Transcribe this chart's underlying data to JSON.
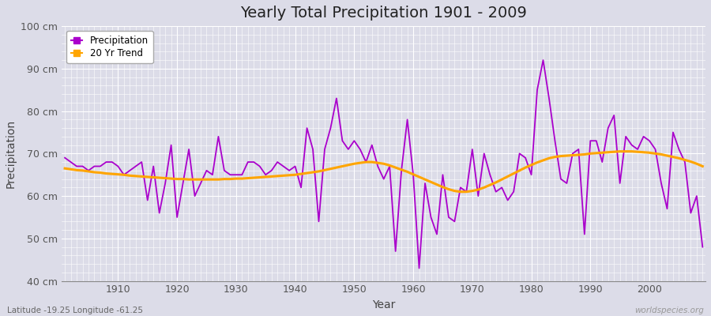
{
  "title": "Yearly Total Precipitation 1901 - 2009",
  "xlabel": "Year",
  "ylabel": "Precipitation",
  "lat_lon_label": "Latitude -19.25 Longitude -61.25",
  "watermark": "worldspecies.org",
  "precip_color": "#AA00CC",
  "trend_color": "#FFA500",
  "bg_color": "#DCDCE8",
  "grid_color": "#FFFFFF",
  "ylim": [
    40,
    100
  ],
  "yticks": [
    40,
    50,
    60,
    70,
    80,
    90,
    100
  ],
  "xlim": [
    1901,
    2009
  ],
  "years": [
    1901,
    1902,
    1903,
    1904,
    1905,
    1906,
    1907,
    1908,
    1909,
    1910,
    1911,
    1912,
    1913,
    1914,
    1915,
    1916,
    1917,
    1918,
    1919,
    1920,
    1921,
    1922,
    1923,
    1924,
    1925,
    1926,
    1927,
    1928,
    1929,
    1930,
    1931,
    1932,
    1933,
    1934,
    1935,
    1936,
    1937,
    1938,
    1939,
    1940,
    1941,
    1942,
    1943,
    1944,
    1945,
    1946,
    1947,
    1948,
    1949,
    1950,
    1951,
    1952,
    1953,
    1954,
    1955,
    1956,
    1957,
    1958,
    1959,
    1960,
    1961,
    1962,
    1963,
    1964,
    1965,
    1966,
    1967,
    1968,
    1969,
    1970,
    1971,
    1972,
    1973,
    1974,
    1975,
    1976,
    1977,
    1978,
    1979,
    1980,
    1981,
    1982,
    1983,
    1984,
    1985,
    1986,
    1987,
    1988,
    1989,
    1990,
    1991,
    1992,
    1993,
    1994,
    1995,
    1996,
    1997,
    1998,
    1999,
    2000,
    2001,
    2002,
    2003,
    2004,
    2005,
    2006,
    2007,
    2008,
    2009
  ],
  "precipitation": [
    69,
    68,
    67,
    67,
    66,
    67,
    67,
    68,
    68,
    67,
    65,
    66,
    67,
    68,
    59,
    67,
    56,
    63,
    72,
    55,
    63,
    71,
    60,
    63,
    66,
    65,
    74,
    66,
    65,
    65,
    65,
    68,
    68,
    67,
    65,
    66,
    68,
    67,
    66,
    67,
    62,
    76,
    71,
    54,
    71,
    76,
    83,
    73,
    71,
    73,
    71,
    68,
    72,
    67,
    64,
    67,
    47,
    66,
    78,
    65,
    43,
    63,
    55,
    51,
    65,
    55,
    54,
    62,
    61,
    71,
    60,
    70,
    65,
    61,
    62,
    59,
    61,
    70,
    69,
    65,
    85,
    92,
    83,
    73,
    64,
    63,
    70,
    71,
    51,
    73,
    73,
    68,
    76,
    79,
    63,
    74,
    72,
    71,
    74,
    73,
    71,
    63,
    57,
    75,
    71,
    68,
    56,
    60,
    48
  ],
  "trend": [
    66.5,
    66.3,
    66.1,
    66.0,
    65.8,
    65.6,
    65.5,
    65.3,
    65.2,
    65.1,
    65.0,
    64.8,
    64.7,
    64.6,
    64.5,
    64.4,
    64.3,
    64.2,
    64.1,
    64.0,
    64.0,
    63.9,
    63.9,
    63.9,
    63.9,
    63.9,
    63.9,
    64.0,
    64.0,
    64.1,
    64.1,
    64.2,
    64.3,
    64.4,
    64.5,
    64.6,
    64.7,
    64.8,
    64.9,
    65.0,
    65.2,
    65.4,
    65.6,
    65.8,
    66.1,
    66.4,
    66.7,
    67.0,
    67.3,
    67.6,
    67.8,
    68.0,
    68.0,
    67.8,
    67.6,
    67.2,
    66.7,
    66.2,
    65.7,
    65.1,
    64.5,
    63.9,
    63.3,
    62.7,
    62.1,
    61.6,
    61.2,
    61.0,
    61.0,
    61.2,
    61.5,
    62.0,
    62.6,
    63.2,
    63.9,
    64.6,
    65.3,
    66.0,
    66.7,
    67.3,
    67.9,
    68.4,
    68.9,
    69.2,
    69.4,
    69.5,
    69.6,
    69.7,
    69.8,
    70.0,
    70.1,
    70.2,
    70.3,
    70.4,
    70.5,
    70.5,
    70.5,
    70.4,
    70.3,
    70.2,
    70.0,
    69.8,
    69.5,
    69.2,
    68.9,
    68.5,
    68.1,
    67.6,
    67.0
  ]
}
